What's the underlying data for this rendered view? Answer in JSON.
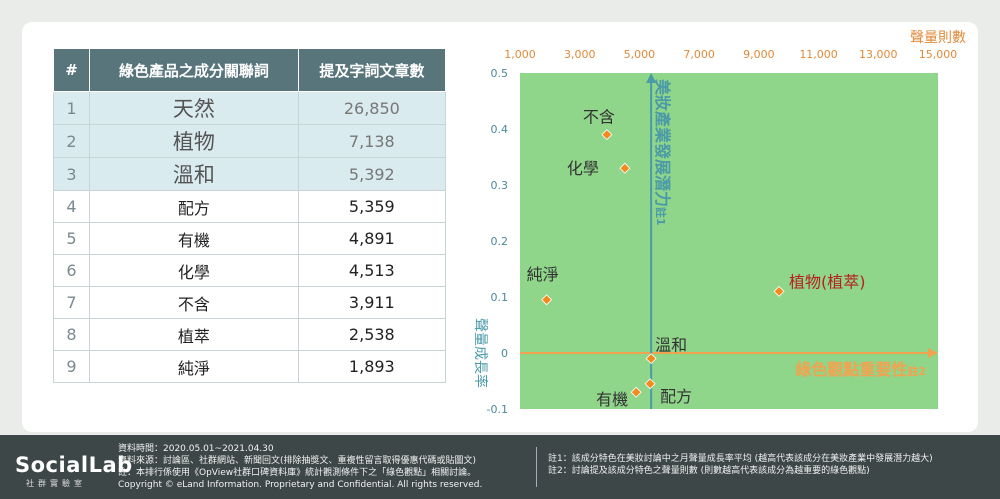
{
  "table": {
    "headers": [
      "#",
      "綠色產品之成分關聯詞",
      "提及字詞文章數"
    ],
    "rows": [
      {
        "rank": "1",
        "keyword": "天然",
        "count": "26,850"
      },
      {
        "rank": "2",
        "keyword": "植物",
        "count": "7,138"
      },
      {
        "rank": "3",
        "keyword": "溫和",
        "count": "5,392"
      },
      {
        "rank": "4",
        "keyword": "配方",
        "count": "5,359"
      },
      {
        "rank": "5",
        "keyword": "有機",
        "count": "4,891"
      },
      {
        "rank": "6",
        "keyword": "化學",
        "count": "4,513"
      },
      {
        "rank": "7",
        "keyword": "不含",
        "count": "3,911"
      },
      {
        "rank": "8",
        "keyword": "植萃",
        "count": "2,538"
      },
      {
        "rank": "9",
        "keyword": "純淨",
        "count": "1,893"
      }
    ]
  },
  "chart_data": {
    "type": "scatter",
    "xlabel": "聲量則數",
    "ylabel": "聲量成長率",
    "x_ticks": [
      "1,000",
      "3,000",
      "5,000",
      "7,000",
      "9,000",
      "11,000",
      "13,000",
      "15,000"
    ],
    "y_ticks": [
      "0.5",
      "0.4",
      "0.3",
      "0.2",
      "0.1",
      "0",
      "-0.1"
    ],
    "xlim": [
      1000,
      15000
    ],
    "ylim": [
      -0.1,
      0.5
    ],
    "x_axis_label": "綠色觀點重要性",
    "x_axis_note": "註2",
    "y_axis_label": "美妝產業發展潛力",
    "y_axis_note": "註1",
    "crosshair": {
      "x": 5392,
      "y": 0
    },
    "points": [
      {
        "label": "不含",
        "x": 3911,
        "y": 0.39
      },
      {
        "label": "化學",
        "x": 4513,
        "y": 0.33
      },
      {
        "label": "純淨",
        "x": 1893,
        "y": 0.095
      },
      {
        "label": "植物(植萃)",
        "x": 9676,
        "y": 0.11
      },
      {
        "label": "溫和",
        "x": 5392,
        "y": -0.01
      },
      {
        "label": "配方",
        "x": 5359,
        "y": -0.055
      },
      {
        "label": "有機",
        "x": 4891,
        "y": -0.07
      }
    ],
    "colors": {
      "plot_bg": "#8fd58a",
      "point": "#f28b1d",
      "x_axis": "#f2a350",
      "y_axis": "#4a9aa8",
      "highlight_label": "#b82020"
    }
  },
  "footer": {
    "logo": "SocialLab",
    "logo_sub": "社群實驗室",
    "notes": [
      "資料時間：2020.05.01~2021.04.30",
      "資料來源：討論區、社群網站、新聞回文(排除抽獎文、重複性留言取得優惠代碼或貼圖文)",
      "註：本排行係使用《OpView社群口碑資料庫》統計觀測條件下之「綠色觀點」相關討論。",
      "Copyright © eLand Information. Proprietary and Confidential. All rights reserved."
    ],
    "notes2": [
      "註1：該成分特色在美妝討論中之月聲量成長率平均 (越高代表該成分在美妝產業中發展潛力越大)",
      "註2：討論提及該成分特色之聲量則數 (則數越高代表該成分為越重要的綠色觀點)"
    ]
  }
}
